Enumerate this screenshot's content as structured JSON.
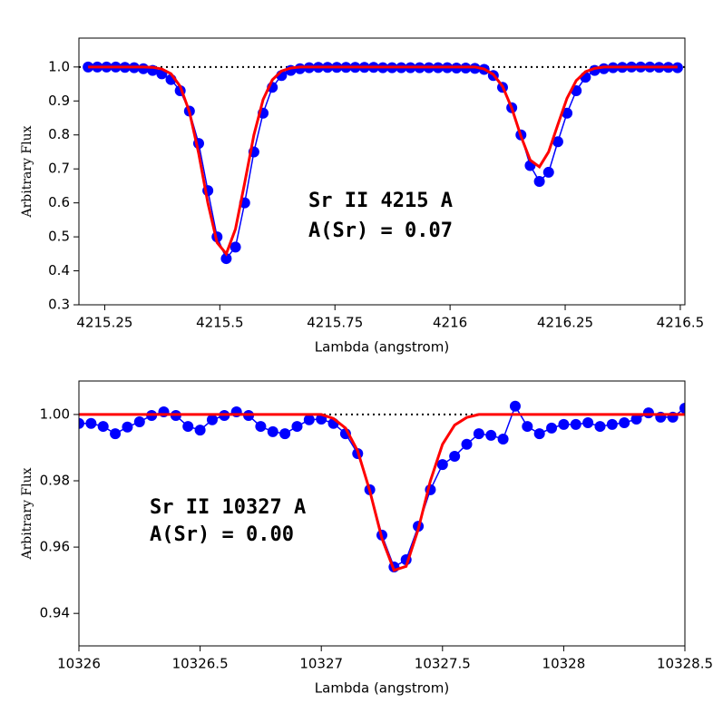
{
  "chart_data": [
    {
      "type": "line",
      "xlabel": "Lambda (angstrom)",
      "ylabel": "Arbitrary Flux",
      "annotations": [
        "Sr II 4215 A",
        "A(Sr) = 0.07"
      ],
      "x": [
        4215.214,
        4215.234,
        4215.254,
        4215.274,
        4215.294,
        4215.314,
        4215.334,
        4215.354,
        4215.374,
        4215.394,
        4215.414,
        4215.434,
        4215.454,
        4215.474,
        4215.494,
        4215.514,
        4215.534,
        4215.554,
        4215.574,
        4215.594,
        4215.614,
        4215.634,
        4215.654,
        4215.674,
        4215.694,
        4215.714,
        4215.734,
        4215.754,
        4215.774,
        4215.794,
        4215.814,
        4215.834,
        4215.854,
        4215.874,
        4215.894,
        4215.914,
        4215.934,
        4215.954,
        4215.974,
        4215.994,
        4216.014,
        4216.034,
        4216.054,
        4216.074,
        4216.094,
        4216.114,
        4216.134,
        4216.154,
        4216.174,
        4216.194,
        4216.214,
        4216.234,
        4216.254,
        4216.274,
        4216.294,
        4216.314,
        4216.334,
        4216.354,
        4216.374,
        4216.394,
        4216.414,
        4216.434,
        4216.454,
        4216.474,
        4216.494
      ],
      "series": [
        {
          "color": "#0000ff",
          "markers": true,
          "values": [
            1.0,
            1.0,
            1.0,
            1.0,
            0.999,
            0.998,
            0.995,
            0.99,
            0.98,
            0.963,
            0.93,
            0.87,
            0.775,
            0.636,
            0.5,
            0.436,
            0.47,
            0.6,
            0.75,
            0.864,
            0.94,
            0.975,
            0.99,
            0.995,
            0.998,
            0.999,
            0.999,
            0.999,
            0.999,
            0.999,
            0.999,
            0.999,
            0.998,
            0.998,
            0.998,
            0.998,
            0.998,
            0.998,
            0.998,
            0.998,
            0.997,
            0.997,
            0.996,
            0.993,
            0.975,
            0.94,
            0.88,
            0.8,
            0.71,
            0.663,
            0.69,
            0.78,
            0.864,
            0.93,
            0.97,
            0.99,
            0.995,
            0.998,
            0.999,
            1.0,
            1.0,
            1.0,
            0.999,
            0.999,
            0.998
          ]
        },
        {
          "color": "#ff0000",
          "markers": false,
          "values": [
            1.0,
            1.0,
            1.0,
            1.0,
            1.0,
            1.0,
            1.0,
            0.999,
            0.994,
            0.98,
            0.943,
            0.868,
            0.746,
            0.6,
            0.483,
            0.45,
            0.523,
            0.659,
            0.8,
            0.904,
            0.962,
            0.988,
            0.997,
            1.0,
            1.0,
            1.0,
            1.0,
            1.0,
            1.0,
            1.0,
            1.0,
            1.0,
            1.0,
            1.0,
            1.0,
            1.0,
            1.0,
            1.0,
            1.0,
            1.0,
            1.0,
            1.0,
            1.0,
            0.994,
            0.978,
            0.943,
            0.879,
            0.796,
            0.726,
            0.706,
            0.75,
            0.83,
            0.908,
            0.96,
            0.986,
            0.996,
            1.0,
            1.0,
            1.0,
            1.0,
            1.0,
            1.0,
            1.0,
            1.0,
            1.0
          ]
        }
      ],
      "hline": 1.0,
      "xlim": [
        4215.194,
        4216.51
      ],
      "ylim": [
        0.3,
        1.085
      ],
      "xticks": [
        4215.25,
        4215.5,
        4215.75,
        4216,
        4216.25,
        4216.5
      ],
      "yticks": [
        0.3,
        0.4,
        0.5,
        0.6,
        0.7,
        0.8,
        0.9,
        {
          "value": 1,
          "label": "1.0"
        }
      ]
    },
    {
      "type": "line",
      "xlabel": "Lambda (angstrom)",
      "ylabel": "Arbitrary Flux",
      "annotations": [
        "Sr II 10327 A",
        "A(Sr) = 0.00"
      ],
      "x": [
        10326.0,
        10326.05,
        10326.1,
        10326.15,
        10326.2,
        10326.25,
        10326.3,
        10326.35,
        10326.4,
        10326.45,
        10326.5,
        10326.55,
        10326.6,
        10326.65,
        10326.7,
        10326.75,
        10326.8,
        10326.85,
        10326.9,
        10326.95,
        10327.0,
        10327.05,
        10327.1,
        10327.15,
        10327.2,
        10327.25,
        10327.3,
        10327.35,
        10327.4,
        10327.45,
        10327.5,
        10327.55,
        10327.6,
        10327.65,
        10327.7,
        10327.75,
        10327.8,
        10327.85,
        10327.9,
        10327.95,
        10328.0,
        10328.05,
        10328.1,
        10328.15,
        10328.2,
        10328.25,
        10328.3,
        10328.35,
        10328.4,
        10328.45,
        10328.5
      ],
      "series": [
        {
          "color": "#0000ff",
          "markers": true,
          "values": [
            0.9973,
            0.9973,
            0.9964,
            0.9942,
            0.9962,
            0.9978,
            0.9997,
            1.0008,
            0.9997,
            0.9964,
            0.9953,
            0.9984,
            0.9997,
            1.0008,
            0.9997,
            0.9964,
            0.9948,
            0.9942,
            0.9964,
            0.9984,
            0.9986,
            0.9973,
            0.9942,
            0.9882,
            0.9773,
            0.9636,
            0.954,
            0.9562,
            0.9663,
            0.9773,
            0.9849,
            0.9874,
            0.991,
            0.9942,
            0.9937,
            0.9926,
            1.0025,
            0.9964,
            0.9942,
            0.9959,
            0.997,
            0.997,
            0.9975,
            0.9964,
            0.997,
            0.9975,
            0.9986,
            1.0005,
            0.9992,
            0.9992,
            1.0019
          ]
        },
        {
          "color": "#ff0000",
          "markers": false,
          "values": [
            1.0,
            1.0,
            1.0,
            1.0,
            1.0,
            1.0,
            1.0,
            1.0,
            1.0,
            1.0,
            1.0,
            1.0,
            1.0,
            1.0,
            1.0,
            1.0,
            1.0,
            1.0,
            1.0,
            1.0,
            1.0,
            0.9988,
            0.9959,
            0.989,
            0.977,
            0.9626,
            0.953,
            0.9542,
            0.9654,
            0.98,
            0.991,
            0.9968,
            0.9991,
            1.0,
            1.0,
            1.0,
            1.0,
            1.0,
            1.0,
            1.0,
            1.0,
            1.0,
            1.0,
            1.0,
            1.0,
            1.0,
            1.0,
            1.0,
            1.0,
            1.0,
            1.0
          ]
        }
      ],
      "hline": 1.0,
      "xlim": [
        10326,
        10328.5
      ],
      "ylim": [
        0.9302,
        1.0101
      ],
      "xticks": [
        10326,
        10326.5,
        10327,
        10327.5,
        10328,
        10328.5
      ],
      "yticks": [
        0.94,
        0.96,
        0.98,
        {
          "value": 1,
          "label": "1.00"
        }
      ]
    }
  ]
}
